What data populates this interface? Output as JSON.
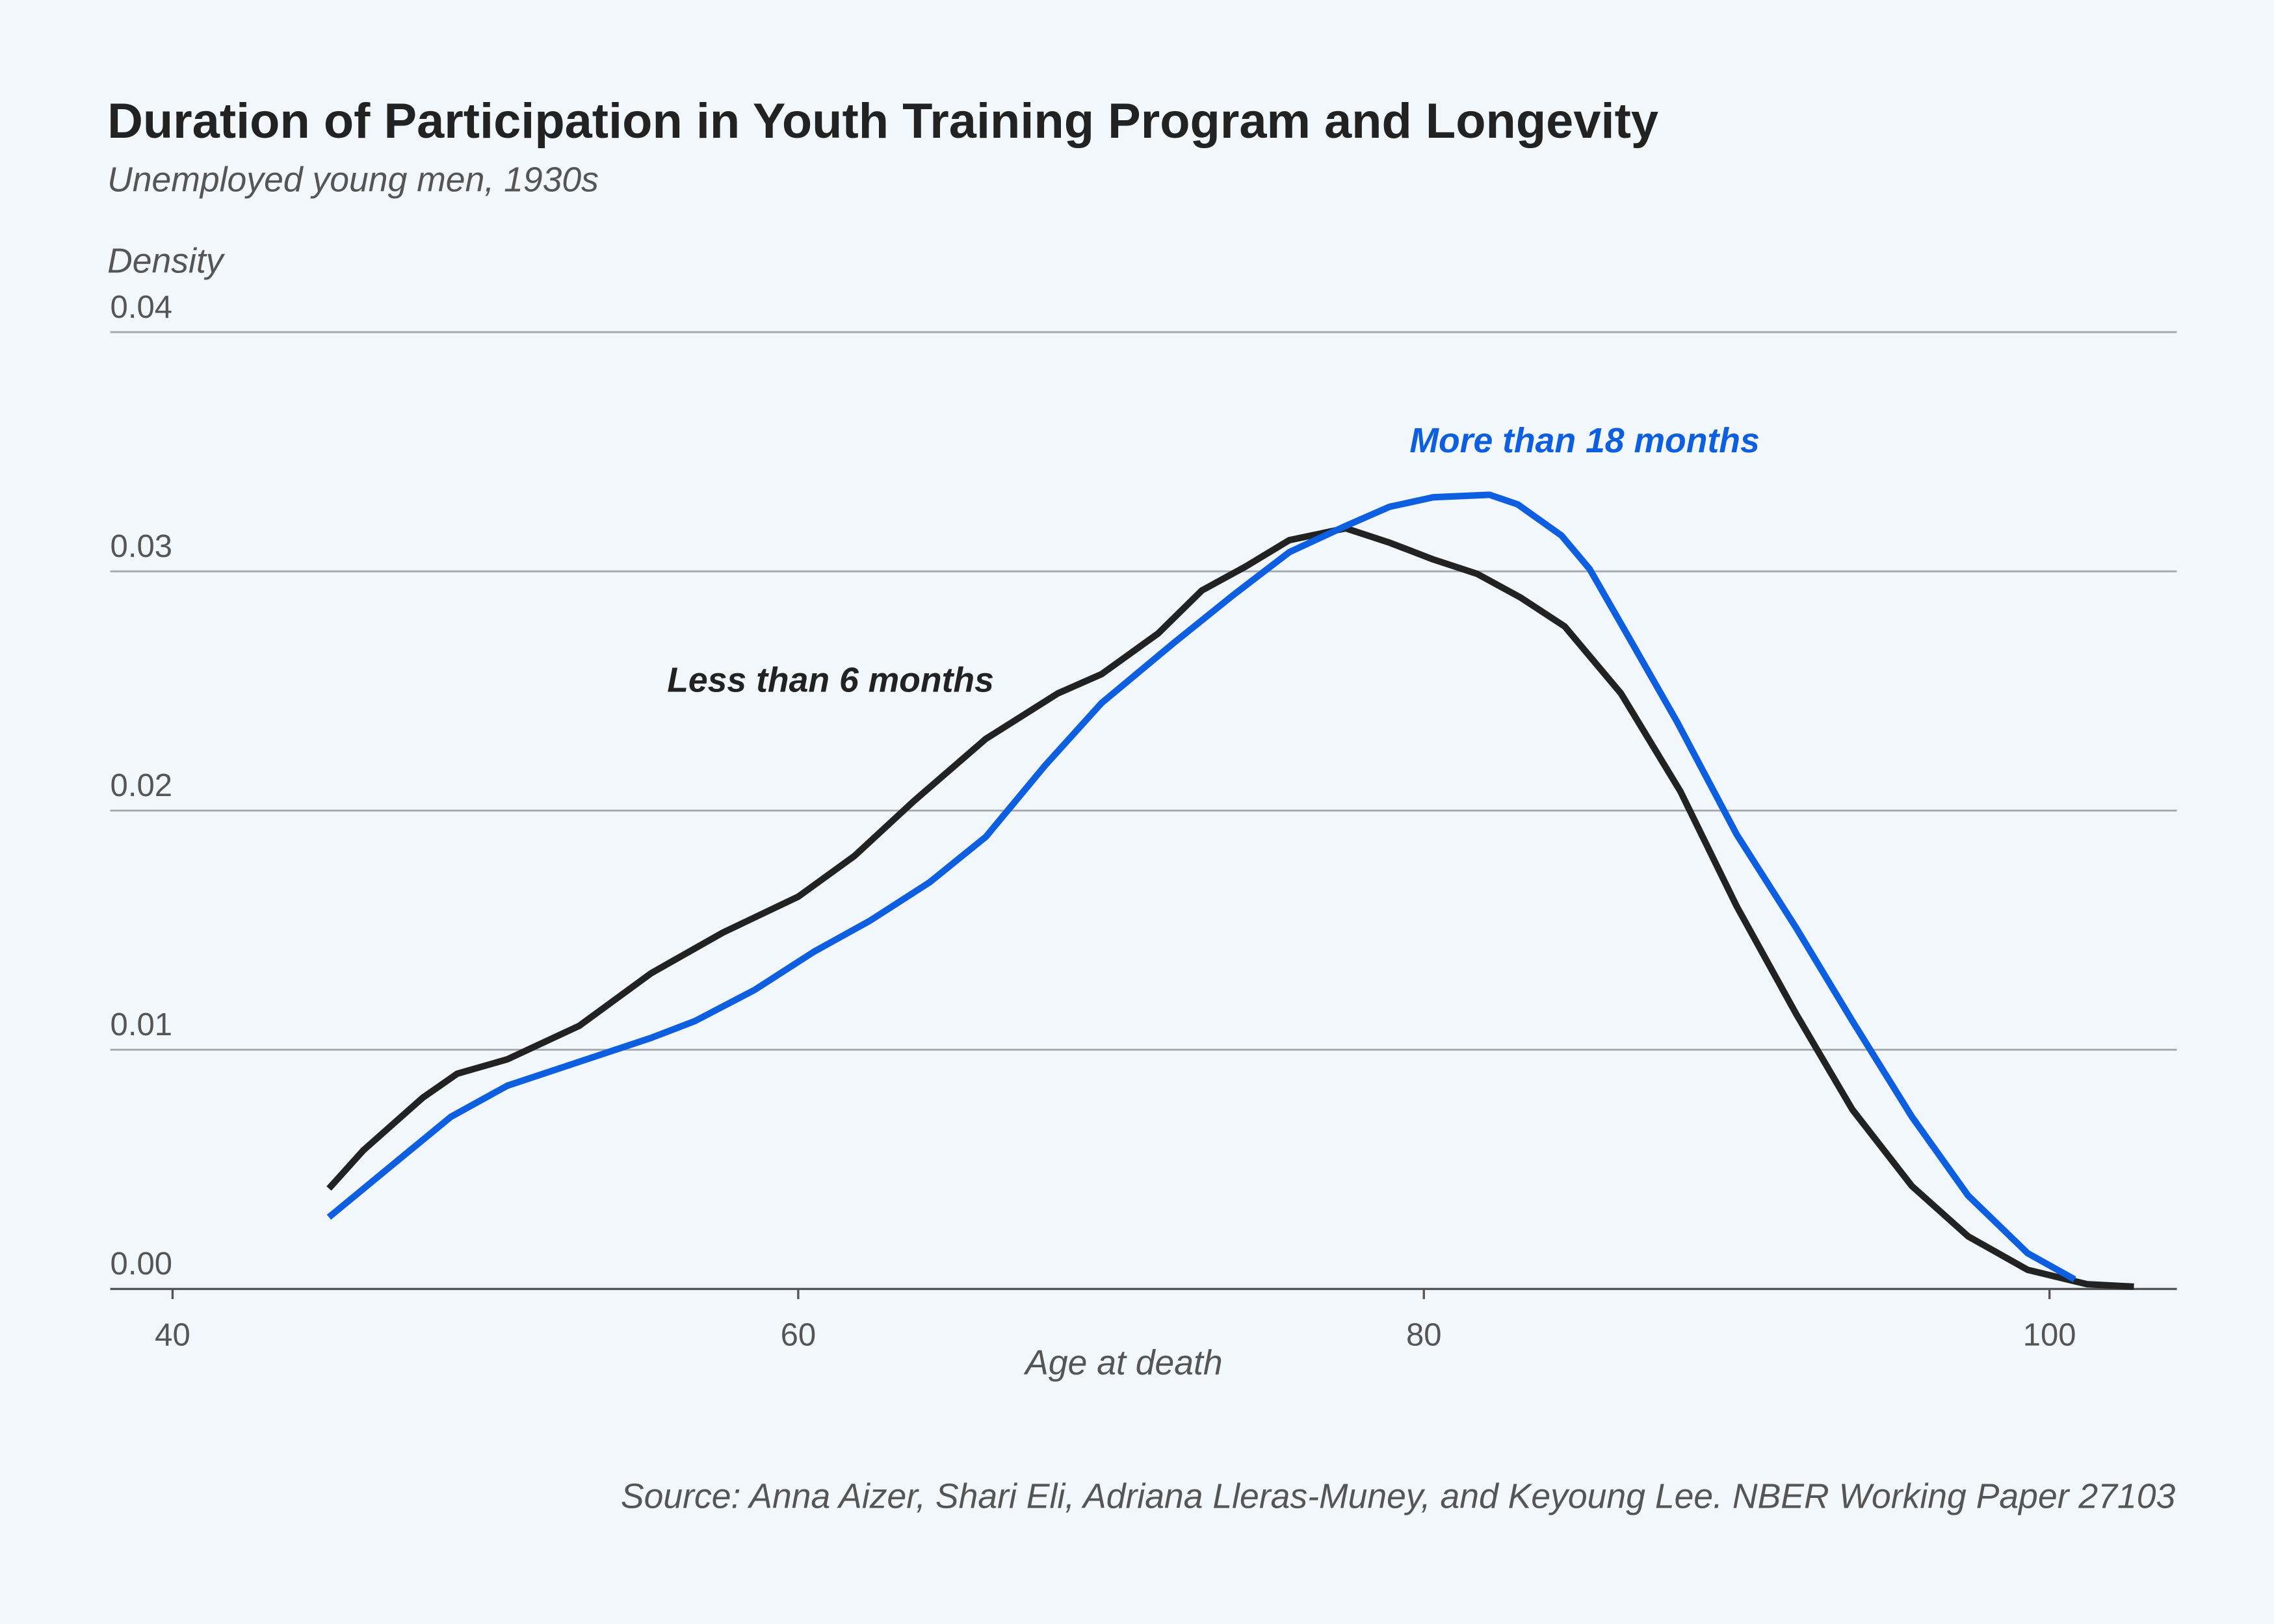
{
  "chart_data": {
    "type": "line",
    "title": "Duration of Participation in Youth Training Program and Longevity",
    "subtitle": "Unemployed young men, 1930s",
    "xlabel": "Age at death",
    "ylabel": "Density",
    "xlim": [
      40,
      104
    ],
    "ylim": [
      0,
      0.04
    ],
    "xticks": [
      "40",
      "60",
      "80",
      "100"
    ],
    "yticks": [
      "0.00",
      "0.01",
      "0.02",
      "0.03",
      "0.04"
    ],
    "grid": "horizontal",
    "source": "Source: Anna Aizer, Shari Eli, Adriana Lleras-Muney, and Keyoung Lee. NBER Working Paper 27103",
    "series": [
      {
        "name": "Less than 6 months",
        "color": "#222222",
        "x": [
          45,
          46.1,
          48,
          49.1,
          50.7,
          53,
          55.3,
          57.6,
          60,
          61.8,
          63.7,
          66,
          68.3,
          69.7,
          71.5,
          72.9,
          74.3,
          75.7,
          77.5,
          78.9,
          80.3,
          81.7,
          83.1,
          84.5,
          86.3,
          88.2,
          90,
          91.9,
          93.7,
          95.6,
          97.4,
          99.3,
          101.2,
          102.7
        ],
        "y": [
          0.0042,
          0.0058,
          0.008,
          0.009,
          0.0096,
          0.011,
          0.0132,
          0.0149,
          0.0164,
          0.0181,
          0.0204,
          0.023,
          0.0249,
          0.0257,
          0.0274,
          0.0292,
          0.0302,
          0.0313,
          0.0318,
          0.0312,
          0.0305,
          0.0299,
          0.0289,
          0.0277,
          0.0249,
          0.0208,
          0.016,
          0.0115,
          0.0075,
          0.0043,
          0.0022,
          0.0008,
          0.0002,
          0.0001
        ]
      },
      {
        "name": "More than 18 months",
        "color": "#0d5fe0",
        "x": [
          45,
          47.5,
          48.9,
          50.7,
          53,
          55.3,
          56.7,
          58.6,
          60.5,
          62.3,
          64.2,
          66,
          67.9,
          69.7,
          72,
          73.9,
          75.7,
          77.5,
          78.9,
          80.3,
          82.1,
          83,
          84.4,
          85.3,
          86.7,
          88.1,
          90,
          91.9,
          93.7,
          95.6,
          97.4,
          99.3,
          100.8
        ],
        "y": [
          0.003,
          0.0057,
          0.0072,
          0.0085,
          0.0095,
          0.0105,
          0.0112,
          0.0125,
          0.0141,
          0.0154,
          0.017,
          0.0189,
          0.0219,
          0.0245,
          0.027,
          0.029,
          0.0308,
          0.0319,
          0.0327,
          0.0331,
          0.0332,
          0.0328,
          0.0315,
          0.0301,
          0.0269,
          0.0237,
          0.019,
          0.0151,
          0.0112,
          0.0072,
          0.0039,
          0.0015,
          0.0004
        ]
      }
    ]
  }
}
